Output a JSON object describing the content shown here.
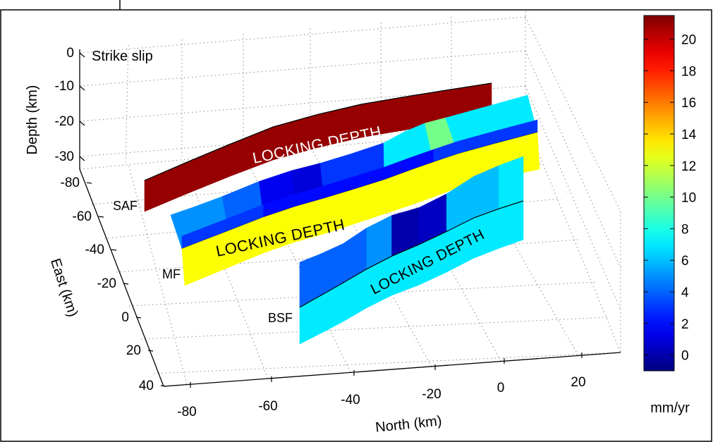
{
  "chart_data": {
    "type": "3d-surface",
    "panel_label": "Strike slip",
    "axes": {
      "z": {
        "label": "Depth (km)",
        "ticks": [
          0,
          -10,
          -20,
          -30
        ],
        "range": [
          -35,
          0
        ]
      },
      "y": {
        "label": "East (km)",
        "ticks": [
          -80,
          -60,
          -40,
          -20,
          0,
          20,
          40
        ],
        "range": [
          -80,
          40
        ]
      },
      "x": {
        "label": "North (km)",
        "ticks": [
          -80,
          -60,
          -40,
          -20,
          0,
          20
        ],
        "range": [
          -90,
          25
        ]
      }
    },
    "grid": true,
    "faults": [
      {
        "name": "SAF",
        "locking_depth_label": "LOCKING DEPTH",
        "slip_rate_mm_yr": [
          21,
          21,
          21,
          21,
          21,
          21,
          21,
          21
        ]
      },
      {
        "name": "MF",
        "locking_depth_label": "LOCKING DEPTH",
        "slip_rate_top_mm_yr": [
          5,
          5,
          4,
          1.5,
          1,
          3,
          3,
          7,
          7,
          10,
          7,
          7
        ],
        "slip_rate_bottom_mm_yr": [
          3,
          3,
          3,
          2,
          2,
          2,
          2,
          2,
          2,
          3,
          3,
          3
        ],
        "below_locking_depth_mm_yr": 13
      },
      {
        "name": "BSF",
        "locking_depth_label": "LOCKING DEPTH",
        "slip_rate_top_mm_yr": [
          4,
          4,
          4,
          5,
          0,
          0.5,
          6,
          6,
          7
        ],
        "slip_rate_bottom_mm_yr": [
          7,
          7,
          7,
          7,
          7,
          7,
          7,
          7,
          7
        ]
      }
    ],
    "colorbar": {
      "label": "mm/yr",
      "ticks": [
        0,
        2,
        4,
        6,
        8,
        10,
        12,
        14,
        16,
        18,
        20
      ],
      "range": [
        -1,
        21.5
      ],
      "colormap": "jet"
    }
  }
}
